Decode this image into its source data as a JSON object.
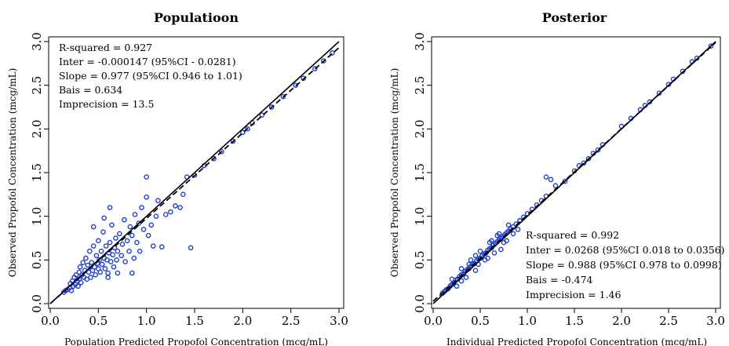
{
  "chart_data": [
    {
      "type": "scatter",
      "title": "Populatioon",
      "xlabel": "Population Predicted Propofol Concentration (mcg/mL)",
      "ylabel": "Observed Propofol Concentration (mcg/mL)",
      "xlim": [
        0,
        3.0
      ],
      "ylim": [
        0,
        3.0
      ],
      "xticks": [
        "0.0",
        "0.5",
        "1.0",
        "1.5",
        "2.0",
        "2.5",
        "3.0"
      ],
      "yticks": [
        "0.0",
        "0.5",
        "1.0",
        "1.5",
        "2.0",
        "2.5",
        "3.0"
      ],
      "grid": false,
      "marker_color": "#1f3fd0",
      "identity_line": {
        "intercept": 0,
        "slope": 1
      },
      "regression_line": {
        "intercept": -0.000147,
        "slope": 0.977
      },
      "annotations": [
        "R-squared = 0.927",
        "Inter = -0.000147 (95%CI - 0.0281)",
        "Slope = 0.977 (95%CI 0.946 to 1.01)",
        "Bais = 0.634",
        "Imprecision = 13.5"
      ],
      "annotation_position": "top-left",
      "points": [
        [
          0.14,
          0.13
        ],
        [
          0.16,
          0.15
        ],
        [
          0.18,
          0.16
        ],
        [
          0.2,
          0.18
        ],
        [
          0.21,
          0.23
        ],
        [
          0.22,
          0.15
        ],
        [
          0.23,
          0.26
        ],
        [
          0.24,
          0.2
        ],
        [
          0.25,
          0.3
        ],
        [
          0.26,
          0.22
        ],
        [
          0.27,
          0.33
        ],
        [
          0.28,
          0.26
        ],
        [
          0.29,
          0.2
        ],
        [
          0.3,
          0.36
        ],
        [
          0.3,
          0.28
        ],
        [
          0.31,
          0.42
        ],
        [
          0.32,
          0.24
        ],
        [
          0.33,
          0.33
        ],
        [
          0.34,
          0.47
        ],
        [
          0.35,
          0.3
        ],
        [
          0.36,
          0.38
        ],
        [
          0.37,
          0.52
        ],
        [
          0.38,
          0.28
        ],
        [
          0.39,
          0.44
        ],
        [
          0.4,
          0.36
        ],
        [
          0.41,
          0.6
        ],
        [
          0.42,
          0.3
        ],
        [
          0.43,
          0.47
        ],
        [
          0.44,
          0.38
        ],
        [
          0.45,
          0.66
        ],
        [
          0.46,
          0.42
        ],
        [
          0.47,
          0.33
        ],
        [
          0.48,
          0.55
        ],
        [
          0.49,
          0.46
        ],
        [
          0.5,
          0.72
        ],
        [
          0.5,
          0.4
        ],
        [
          0.51,
          0.5
        ],
        [
          0.52,
          0.36
        ],
        [
          0.53,
          0.6
        ],
        [
          0.54,
          0.45
        ],
        [
          0.55,
          0.82
        ],
        [
          0.56,
          0.52
        ],
        [
          0.57,
          0.4
        ],
        [
          0.58,
          0.66
        ],
        [
          0.59,
          0.5
        ],
        [
          0.6,
          0.35
        ],
        [
          0.61,
          0.58
        ],
        [
          0.62,
          0.7
        ],
        [
          0.63,
          0.48
        ],
        [
          0.64,
          0.9
        ],
        [
          0.65,
          0.56
        ],
        [
          0.66,
          0.42
        ],
        [
          0.67,
          0.64
        ],
        [
          0.68,
          0.75
        ],
        [
          0.69,
          0.5
        ],
        [
          0.7,
          0.6
        ],
        [
          0.72,
          0.8
        ],
        [
          0.74,
          0.55
        ],
        [
          0.75,
          0.68
        ],
        [
          0.77,
          0.96
        ],
        [
          0.78,
          0.48
        ],
        [
          0.8,
          0.72
        ],
        [
          0.82,
          0.6
        ],
        [
          0.83,
          0.88
        ],
        [
          0.85,
          0.78
        ],
        [
          0.87,
          0.52
        ],
        [
          0.88,
          1.02
        ],
        [
          0.9,
          0.7
        ],
        [
          0.92,
          0.92
        ],
        [
          0.93,
          0.6
        ],
        [
          0.95,
          1.1
        ],
        [
          0.97,
          0.85
        ],
        [
          1.0,
          1.22
        ],
        [
          1.02,
          0.78
        ],
        [
          1.05,
          0.9
        ],
        [
          1.07,
          0.66
        ],
        [
          1.1,
          1.0
        ],
        [
          1.12,
          1.18
        ],
        [
          1.16,
          0.65
        ],
        [
          1.2,
          1.02
        ],
        [
          1.25,
          1.05
        ],
        [
          1.3,
          1.12
        ],
        [
          1.35,
          1.1
        ],
        [
          1.38,
          1.25
        ],
        [
          1.42,
          1.45
        ],
        [
          1.46,
          0.64
        ],
        [
          0.62,
          1.1
        ],
        [
          0.56,
          0.98
        ],
        [
          1.0,
          1.45
        ],
        [
          0.45,
          0.88
        ],
        [
          0.7,
          0.35
        ],
        [
          0.85,
          0.35
        ],
        [
          0.6,
          0.3
        ],
        [
          1.5,
          1.47
        ],
        [
          1.6,
          1.58
        ],
        [
          1.7,
          1.66
        ],
        [
          1.78,
          1.74
        ],
        [
          1.9,
          1.86
        ],
        [
          2.0,
          1.96
        ],
        [
          2.05,
          2.0
        ],
        [
          2.1,
          2.07
        ],
        [
          2.2,
          2.16
        ],
        [
          2.3,
          2.25
        ],
        [
          2.42,
          2.37
        ],
        [
          2.55,
          2.5
        ],
        [
          2.63,
          2.58
        ],
        [
          2.75,
          2.69
        ],
        [
          2.84,
          2.78
        ],
        [
          2.93,
          2.87
        ]
      ]
    },
    {
      "type": "scatter",
      "title": "Posterior",
      "xlabel": "Individual Predicted Propofol Concentration (mcg/mL)",
      "ylabel": "Observed Propofol Concentration (mcg/mL)",
      "xlim": [
        0,
        3.0
      ],
      "ylim": [
        0,
        3.0
      ],
      "xticks": [
        "0.0",
        "0.5",
        "1.0",
        "1.5",
        "2.0",
        "2.5",
        "3.0"
      ],
      "yticks": [
        "0.0",
        "0.5",
        "1.0",
        "1.5",
        "2.0",
        "2.5",
        "3.0"
      ],
      "grid": false,
      "marker_color": "#1f3fd0",
      "identity_line": {
        "intercept": 0,
        "slope": 1
      },
      "regression_line": {
        "intercept": 0.0268,
        "slope": 0.988
      },
      "annotations": [
        "R-squared = 0.992",
        "Inter = 0.0268 (95%CI 0.018 to 0.0356)",
        "Slope = 0.988 (95%CI 0.978 to 0.0998)",
        "Bais = -0.474",
        "Imprecision = 1.46"
      ],
      "annotation_position": "bottom-right",
      "points": [
        [
          0.1,
          0.12
        ],
        [
          0.12,
          0.14
        ],
        [
          0.14,
          0.16
        ],
        [
          0.16,
          0.17
        ],
        [
          0.18,
          0.2
        ],
        [
          0.2,
          0.22
        ],
        [
          0.22,
          0.24
        ],
        [
          0.24,
          0.27
        ],
        [
          0.26,
          0.28
        ],
        [
          0.28,
          0.31
        ],
        [
          0.3,
          0.33
        ],
        [
          0.32,
          0.34
        ],
        [
          0.34,
          0.37
        ],
        [
          0.36,
          0.39
        ],
        [
          0.38,
          0.4
        ],
        [
          0.4,
          0.43
        ],
        [
          0.42,
          0.45
        ],
        [
          0.44,
          0.46
        ],
        [
          0.46,
          0.49
        ],
        [
          0.48,
          0.51
        ],
        [
          0.5,
          0.52
        ],
        [
          0.52,
          0.55
        ],
        [
          0.54,
          0.57
        ],
        [
          0.56,
          0.58
        ],
        [
          0.58,
          0.61
        ],
        [
          0.6,
          0.63
        ],
        [
          0.62,
          0.64
        ],
        [
          0.64,
          0.67
        ],
        [
          0.66,
          0.69
        ],
        [
          0.68,
          0.71
        ],
        [
          0.7,
          0.73
        ],
        [
          0.72,
          0.75
        ],
        [
          0.74,
          0.77
        ],
        [
          0.76,
          0.79
        ],
        [
          0.78,
          0.81
        ],
        [
          0.8,
          0.83
        ],
        [
          0.82,
          0.85
        ],
        [
          0.85,
          0.88
        ],
        [
          0.88,
          0.91
        ],
        [
          0.92,
          0.95
        ],
        [
          0.96,
          0.99
        ],
        [
          1.0,
          1.03
        ],
        [
          1.05,
          1.08
        ],
        [
          1.1,
          1.13
        ],
        [
          1.15,
          1.18
        ],
        [
          1.2,
          1.23
        ],
        [
          0.2,
          0.28
        ],
        [
          0.25,
          0.2
        ],
        [
          0.3,
          0.4
        ],
        [
          0.35,
          0.3
        ],
        [
          0.4,
          0.5
        ],
        [
          0.45,
          0.38
        ],
        [
          0.5,
          0.6
        ],
        [
          0.55,
          0.5
        ],
        [
          0.6,
          0.7
        ],
        [
          0.65,
          0.58
        ],
        [
          0.7,
          0.8
        ],
        [
          0.75,
          0.7
        ],
        [
          0.8,
          0.9
        ],
        [
          0.85,
          0.8
        ],
        [
          0.3,
          0.26
        ],
        [
          0.45,
          0.55
        ],
        [
          0.58,
          0.52
        ],
        [
          0.68,
          0.78
        ],
        [
          0.78,
          0.72
        ],
        [
          0.9,
          0.85
        ],
        [
          0.62,
          0.72
        ],
        [
          0.72,
          0.62
        ],
        [
          0.48,
          0.45
        ],
        [
          0.38,
          0.45
        ],
        [
          1.2,
          1.45
        ],
        [
          1.25,
          1.42
        ],
        [
          1.3,
          1.35
        ],
        [
          1.4,
          1.4
        ],
        [
          1.5,
          1.52
        ],
        [
          1.55,
          1.58
        ],
        [
          1.6,
          1.61
        ],
        [
          1.65,
          1.66
        ],
        [
          1.7,
          1.72
        ],
        [
          1.75,
          1.76
        ],
        [
          1.8,
          1.82
        ],
        [
          2.0,
          2.03
        ],
        [
          2.1,
          2.12
        ],
        [
          2.2,
          2.22
        ],
        [
          2.25,
          2.27
        ],
        [
          2.3,
          2.31
        ],
        [
          2.4,
          2.41
        ],
        [
          2.5,
          2.51
        ],
        [
          2.55,
          2.57
        ],
        [
          2.65,
          2.66
        ],
        [
          2.75,
          2.77
        ],
        [
          2.8,
          2.81
        ],
        [
          2.95,
          2.95
        ]
      ]
    }
  ]
}
